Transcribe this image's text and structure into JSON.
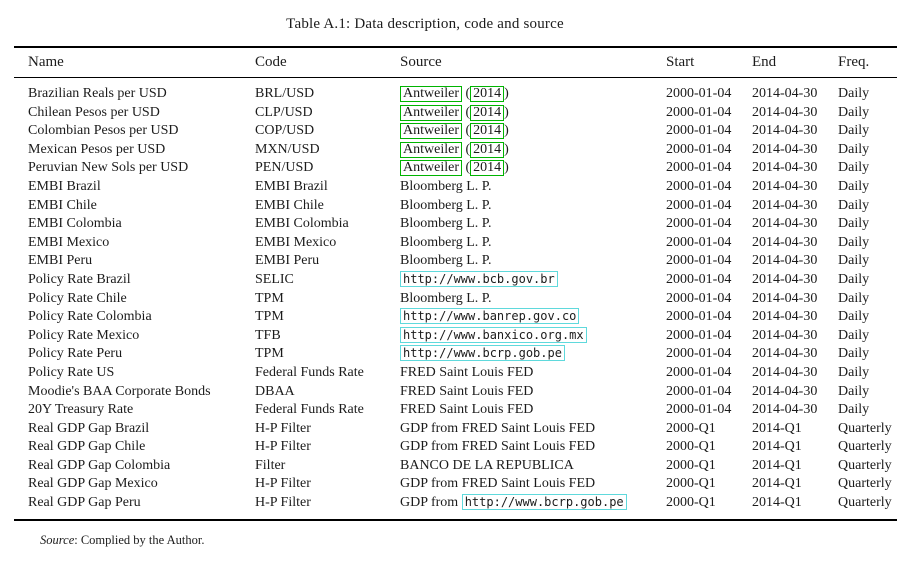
{
  "title": "Table A.1: Data description, code and source",
  "columns": [
    "Name",
    "Code",
    "Source",
    "Start",
    "End",
    "Freq."
  ],
  "colors": {
    "cite_border": "#00b400",
    "url_border": "#5fd9dc",
    "ink": "#1b1b1b"
  },
  "footer": {
    "label": "Source",
    "text": ": Complied by the Author."
  },
  "rows": [
    {
      "name": "Brazilian Reals per USD",
      "code": "BRL/USD",
      "source": {
        "cite": "Antweiler",
        "year": "2014"
      },
      "start": "2000-01-04",
      "end": "2014-04-30",
      "freq": "Daily"
    },
    {
      "name": "Chilean Pesos per USD",
      "code": "CLP/USD",
      "source": {
        "cite": "Antweiler",
        "year": "2014"
      },
      "start": "2000-01-04",
      "end": "2014-04-30",
      "freq": "Daily"
    },
    {
      "name": "Colombian Pesos per USD",
      "code": "COP/USD",
      "source": {
        "cite": "Antweiler",
        "year": "2014"
      },
      "start": "2000-01-04",
      "end": "2014-04-30",
      "freq": "Daily"
    },
    {
      "name": "Mexican Pesos per USD",
      "code": "MXN/USD",
      "source": {
        "cite": "Antweiler",
        "year": "2014"
      },
      "start": "2000-01-04",
      "end": "2014-04-30",
      "freq": "Daily"
    },
    {
      "name": "Peruvian New Sols per USD",
      "code": "PEN/USD",
      "source": {
        "cite": "Antweiler",
        "year": "2014"
      },
      "start": "2000-01-04",
      "end": "2014-04-30",
      "freq": "Daily"
    },
    {
      "name": "EMBI Brazil",
      "code": "EMBI Brazil",
      "source": {
        "text": "Bloomberg L. P."
      },
      "start": "2000-01-04",
      "end": "2014-04-30",
      "freq": "Daily"
    },
    {
      "name": "EMBI Chile",
      "code": "EMBI Chile",
      "source": {
        "text": "Bloomberg L. P."
      },
      "start": "2000-01-04",
      "end": "2014-04-30",
      "freq": "Daily"
    },
    {
      "name": "EMBI Colombia",
      "code": "EMBI Colombia",
      "source": {
        "text": "Bloomberg L. P."
      },
      "start": "2000-01-04",
      "end": "2014-04-30",
      "freq": "Daily"
    },
    {
      "name": "EMBI Mexico",
      "code": "EMBI Mexico",
      "source": {
        "text": "Bloomberg L. P."
      },
      "start": "2000-01-04",
      "end": "2014-04-30",
      "freq": "Daily"
    },
    {
      "name": "EMBI Peru",
      "code": "EMBI Peru",
      "source": {
        "text": "Bloomberg L. P."
      },
      "start": "2000-01-04",
      "end": "2014-04-30",
      "freq": "Daily"
    },
    {
      "name": "Policy Rate Brazil",
      "code": "SELIC",
      "source": {
        "url": "http://www.bcb.gov.br"
      },
      "start": "2000-01-04",
      "end": "2014-04-30",
      "freq": "Daily"
    },
    {
      "name": "Policy Rate Chile",
      "code": "TPM",
      "source": {
        "text": "Bloomberg L. P."
      },
      "start": "2000-01-04",
      "end": "2014-04-30",
      "freq": "Daily"
    },
    {
      "name": "Policy Rate Colombia",
      "code": "TPM",
      "source": {
        "url": "http://www.banrep.gov.co"
      },
      "start": "2000-01-04",
      "end": "2014-04-30",
      "freq": "Daily"
    },
    {
      "name": "Policy Rate Mexico",
      "code": "TFB",
      "source": {
        "url": "http://www.banxico.org.mx"
      },
      "start": "2000-01-04",
      "end": "2014-04-30",
      "freq": "Daily"
    },
    {
      "name": "Policy Rate Peru",
      "code": "TPM",
      "source": {
        "url": "http://www.bcrp.gob.pe"
      },
      "start": "2000-01-04",
      "end": "2014-04-30",
      "freq": "Daily"
    },
    {
      "name": "Policy Rate US",
      "code": "Federal Funds Rate",
      "source": {
        "text": "FRED Saint Louis FED"
      },
      "start": "2000-01-04",
      "end": "2014-04-30",
      "freq": "Daily"
    },
    {
      "name": "Moodie's BAA Corporate Bonds",
      "code": "DBAA",
      "source": {
        "text": "FRED Saint Louis FED"
      },
      "start": "2000-01-04",
      "end": "2014-04-30",
      "freq": "Daily"
    },
    {
      "name": "20Y Treasury Rate",
      "code": "Federal Funds Rate",
      "source": {
        "text": "FRED Saint Louis FED"
      },
      "start": "2000-01-04",
      "end": "2014-04-30",
      "freq": "Daily"
    },
    {
      "name": "Real GDP Gap Brazil",
      "code": "H-P Filter",
      "source": {
        "text": "GDP from FRED Saint Louis FED"
      },
      "start": "2000-Q1",
      "end": "2014-Q1",
      "freq": "Quarterly"
    },
    {
      "name": "Real GDP Gap Chile",
      "code": "H-P Filter",
      "source": {
        "text": "GDP from FRED Saint Louis FED"
      },
      "start": "2000-Q1",
      "end": "2014-Q1",
      "freq": "Quarterly"
    },
    {
      "name": "Real GDP Gap Colombia",
      "code": "Filter",
      "source": {
        "text": "BANCO DE LA REPUBLICA"
      },
      "start": "2000-Q1",
      "end": "2014-Q1",
      "freq": "Quarterly"
    },
    {
      "name": "Real GDP Gap Mexico",
      "code": "H-P Filter",
      "source": {
        "text": "GDP from FRED Saint Louis FED"
      },
      "start": "2000-Q1",
      "end": "2014-Q1",
      "freq": "Quarterly"
    },
    {
      "name": "Real GDP Gap Peru",
      "code": "H-P Filter",
      "source": {
        "text": "GDP from ",
        "url": "http://www.bcrp.gob.pe"
      },
      "start": "2000-Q1",
      "end": "2014-Q1",
      "freq": "Quarterly"
    }
  ]
}
